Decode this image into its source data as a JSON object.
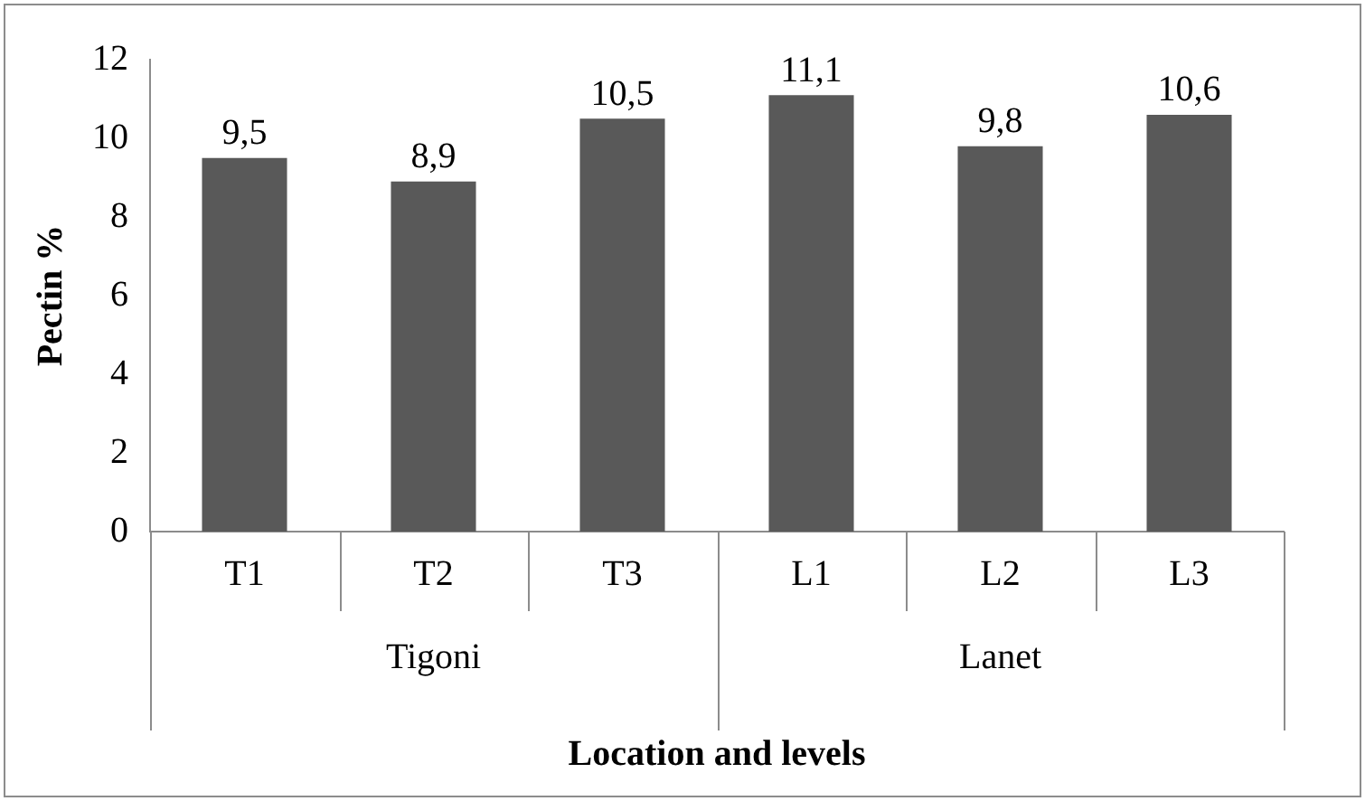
{
  "chart_data": {
    "type": "bar",
    "xlabel": "Location and levels",
    "ylabel": "Pectin %",
    "categories": [
      "T1",
      "T2",
      "T3",
      "L1",
      "L2",
      "L3"
    ],
    "values": [
      9.5,
      8.9,
      10.5,
      11.1,
      9.8,
      10.6
    ],
    "value_labels": [
      "9,5",
      "8,9",
      "10,5",
      "11,1",
      "9,8",
      "10,6"
    ],
    "color": "#595959",
    "ylim": [
      0,
      12
    ],
    "yticks": [
      0,
      2,
      4,
      6,
      8,
      10,
      12
    ],
    "grid": false,
    "legend": false,
    "annotations": [
      "Tigoni",
      "Lanet"
    ]
  }
}
